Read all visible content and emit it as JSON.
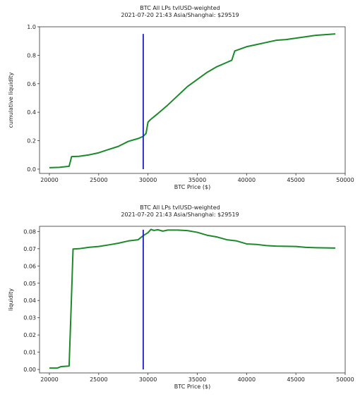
{
  "chart_data": [
    {
      "type": "line",
      "title": "BTC All LPs tvlUSD-weighted",
      "subtitle": "2021-07-20 21:43 Asia/Shanghai: $29519",
      "xlabel": "BTC Price ($)",
      "ylabel": "cumulative liquidity",
      "xlim": [
        19000,
        50000
      ],
      "ylim": [
        -0.03,
        1.0
      ],
      "xticks": [
        20000,
        25000,
        30000,
        35000,
        40000,
        45000,
        50000
      ],
      "yticks": [
        0.0,
        0.2,
        0.4,
        0.6,
        0.8,
        1.0
      ],
      "xtick_labels": [
        "20000",
        "25000",
        "30000",
        "35000",
        "40000",
        "45000",
        "50000"
      ],
      "ytick_labels": [
        "0.0",
        "0.2",
        "0.4",
        "0.6",
        "0.8",
        "1.0"
      ],
      "grid": false,
      "vline": {
        "x": 29519,
        "y_from": 0.0,
        "y_to": 0.95,
        "color": "#1f1fcc"
      },
      "series": [
        {
          "color": "#1a8a2a",
          "x": [
            20000,
            21000,
            22000,
            22150,
            22250,
            23000,
            24000,
            25000,
            26000,
            27000,
            28000,
            29000,
            29500,
            29800,
            30000,
            30200,
            31000,
            32000,
            33000,
            34000,
            35000,
            36000,
            37000,
            38000,
            38500,
            38800,
            40000,
            41000,
            42000,
            43000,
            44000,
            45000,
            46000,
            47000,
            48000,
            49000
          ],
          "y": [
            0.01,
            0.013,
            0.02,
            0.06,
            0.088,
            0.09,
            0.1,
            0.115,
            0.138,
            0.16,
            0.195,
            0.215,
            0.23,
            0.25,
            0.33,
            0.345,
            0.39,
            0.45,
            0.515,
            0.58,
            0.63,
            0.68,
            0.72,
            0.75,
            0.765,
            0.83,
            0.86,
            0.875,
            0.89,
            0.905,
            0.91,
            0.92,
            0.93,
            0.94,
            0.945,
            0.95
          ]
        }
      ]
    },
    {
      "type": "line",
      "title": "BTC All LPs tvlUSD-weighted",
      "subtitle": "2021-07-20 21:43 Asia/Shanghai: $29519",
      "xlabel": "BTC Price ($)",
      "ylabel": "liquidity",
      "xlim": [
        19000,
        50000
      ],
      "ylim": [
        -0.002,
        0.083
      ],
      "xticks": [
        20000,
        25000,
        30000,
        35000,
        40000,
        45000,
        50000
      ],
      "yticks": [
        0.0,
        0.01,
        0.02,
        0.03,
        0.04,
        0.05,
        0.06,
        0.07,
        0.08
      ],
      "xtick_labels": [
        "20000",
        "25000",
        "30000",
        "35000",
        "40000",
        "45000",
        "50000"
      ],
      "ytick_labels": [
        "0.00",
        "0.01",
        "0.02",
        "0.03",
        "0.04",
        "0.05",
        "0.06",
        "0.07",
        "0.08"
      ],
      "grid": false,
      "vline": {
        "x": 29519,
        "y_from": 0.0,
        "y_to": 0.081,
        "color": "#1f1fcc"
      },
      "series": [
        {
          "color": "#1a8a2a",
          "x": [
            20000,
            20800,
            21200,
            22000,
            22200,
            22400,
            23000,
            24000,
            25000,
            26000,
            27000,
            28000,
            29000,
            29500,
            30000,
            30300,
            30600,
            31000,
            31500,
            32000,
            33000,
            34000,
            35000,
            36000,
            37000,
            38000,
            39000,
            40000,
            41000,
            42000,
            43000,
            44000,
            45000,
            46000,
            47000,
            48000,
            49000
          ],
          "y": [
            0.0008,
            0.0008,
            0.0017,
            0.002,
            0.035,
            0.0698,
            0.07,
            0.0708,
            0.0713,
            0.0722,
            0.0732,
            0.0745,
            0.0752,
            0.0775,
            0.0793,
            0.0812,
            0.0806,
            0.081,
            0.0802,
            0.0808,
            0.0808,
            0.0805,
            0.0795,
            0.0778,
            0.0768,
            0.0752,
            0.0745,
            0.0728,
            0.0725,
            0.0718,
            0.0715,
            0.0714,
            0.0713,
            0.0708,
            0.0706,
            0.0705,
            0.0704
          ]
        }
      ]
    }
  ]
}
